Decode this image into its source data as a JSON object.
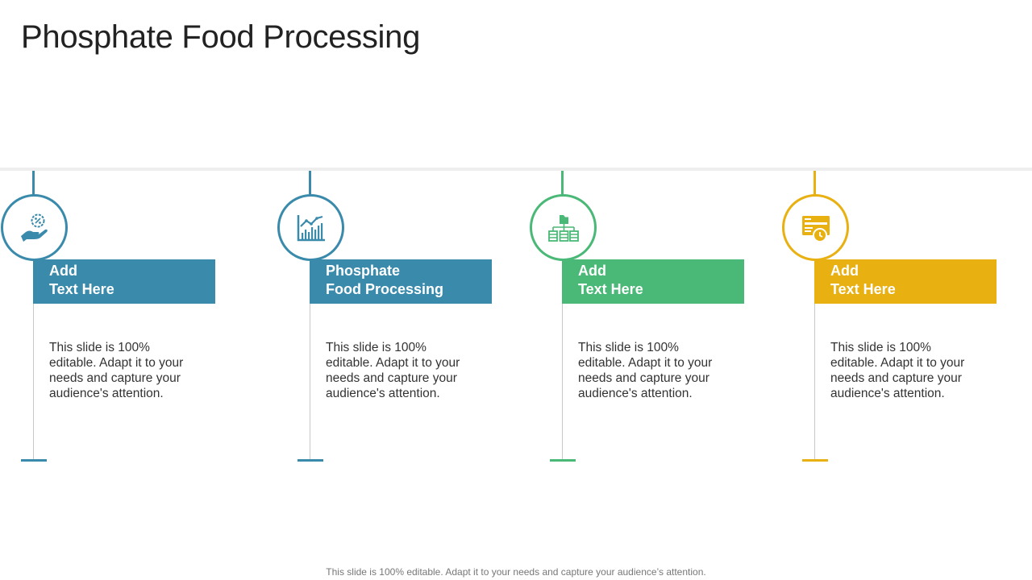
{
  "title": "Phosphate Food Processing",
  "colors": {
    "blue": "#3a8aab",
    "green": "#4ab876",
    "gold": "#e8b011",
    "divider": "#eeeeee"
  },
  "columns": [
    {
      "icon": "line-chart-icon",
      "color": "#3a8aab",
      "heading_line1": "Phosphate",
      "heading_line2": "Food Processing",
      "text": "This slide is 100% editable. Adapt it to your needs and capture your audience's attention."
    },
    {
      "icon": "folder-hierarchy-icon",
      "color": "#4ab876",
      "heading_line1": "Add",
      "heading_line2": "Text Here",
      "text": "This slide is 100% editable. Adapt it to your needs and capture your audience's attention."
    },
    {
      "icon": "browser-clock-icon",
      "color": "#e8b011",
      "heading_line1": "Add",
      "heading_line2": "Text Here",
      "text": "This slide is 100% editable. Adapt it to your needs and capture your audience's attention."
    },
    {
      "icon": "hand-percent-icon",
      "color": "#3a8aab",
      "heading_line1": "Add",
      "heading_line2": "Text Here",
      "text": "This slide is 100% editable. Adapt it to your needs and capture your audience's attention."
    }
  ],
  "footer": "This slide is 100% editable. Adapt it to your needs and capture your audience’s attention."
}
